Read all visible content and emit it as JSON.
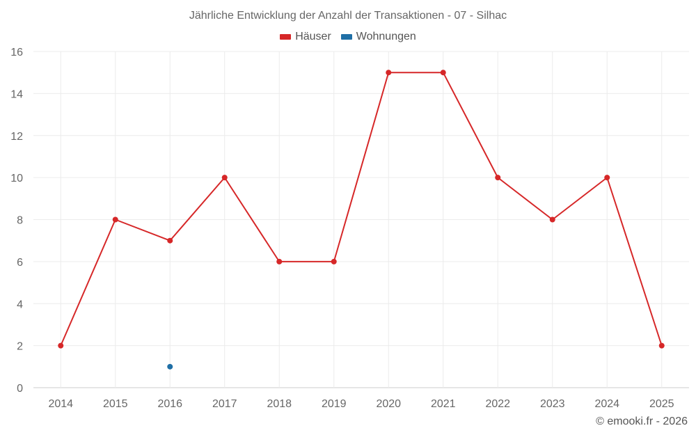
{
  "chart_data": {
    "type": "line",
    "title": "Jährliche Entwicklung der Anzahl der Transaktionen - 07 - Silhac",
    "categories": [
      "2014",
      "2015",
      "2016",
      "2017",
      "2018",
      "2019",
      "2020",
      "2021",
      "2022",
      "2023",
      "2024",
      "2025"
    ],
    "series": [
      {
        "name": "Häuser",
        "color": "#d62728",
        "values": [
          2,
          8,
          7,
          10,
          6,
          6,
          15,
          15,
          10,
          8,
          10,
          2
        ]
      },
      {
        "name": "Wohnungen",
        "color": "#1f6fa6",
        "values": [
          null,
          null,
          1,
          null,
          null,
          null,
          null,
          null,
          null,
          null,
          null,
          null
        ]
      }
    ],
    "yticks": [
      0,
      2,
      4,
      6,
      8,
      10,
      12,
      14,
      16
    ],
    "ylim": [
      0,
      16
    ],
    "xlabel": "",
    "ylabel": "",
    "grid": true,
    "legend": "top-center"
  },
  "credit": "© emooki.fr - 2026"
}
